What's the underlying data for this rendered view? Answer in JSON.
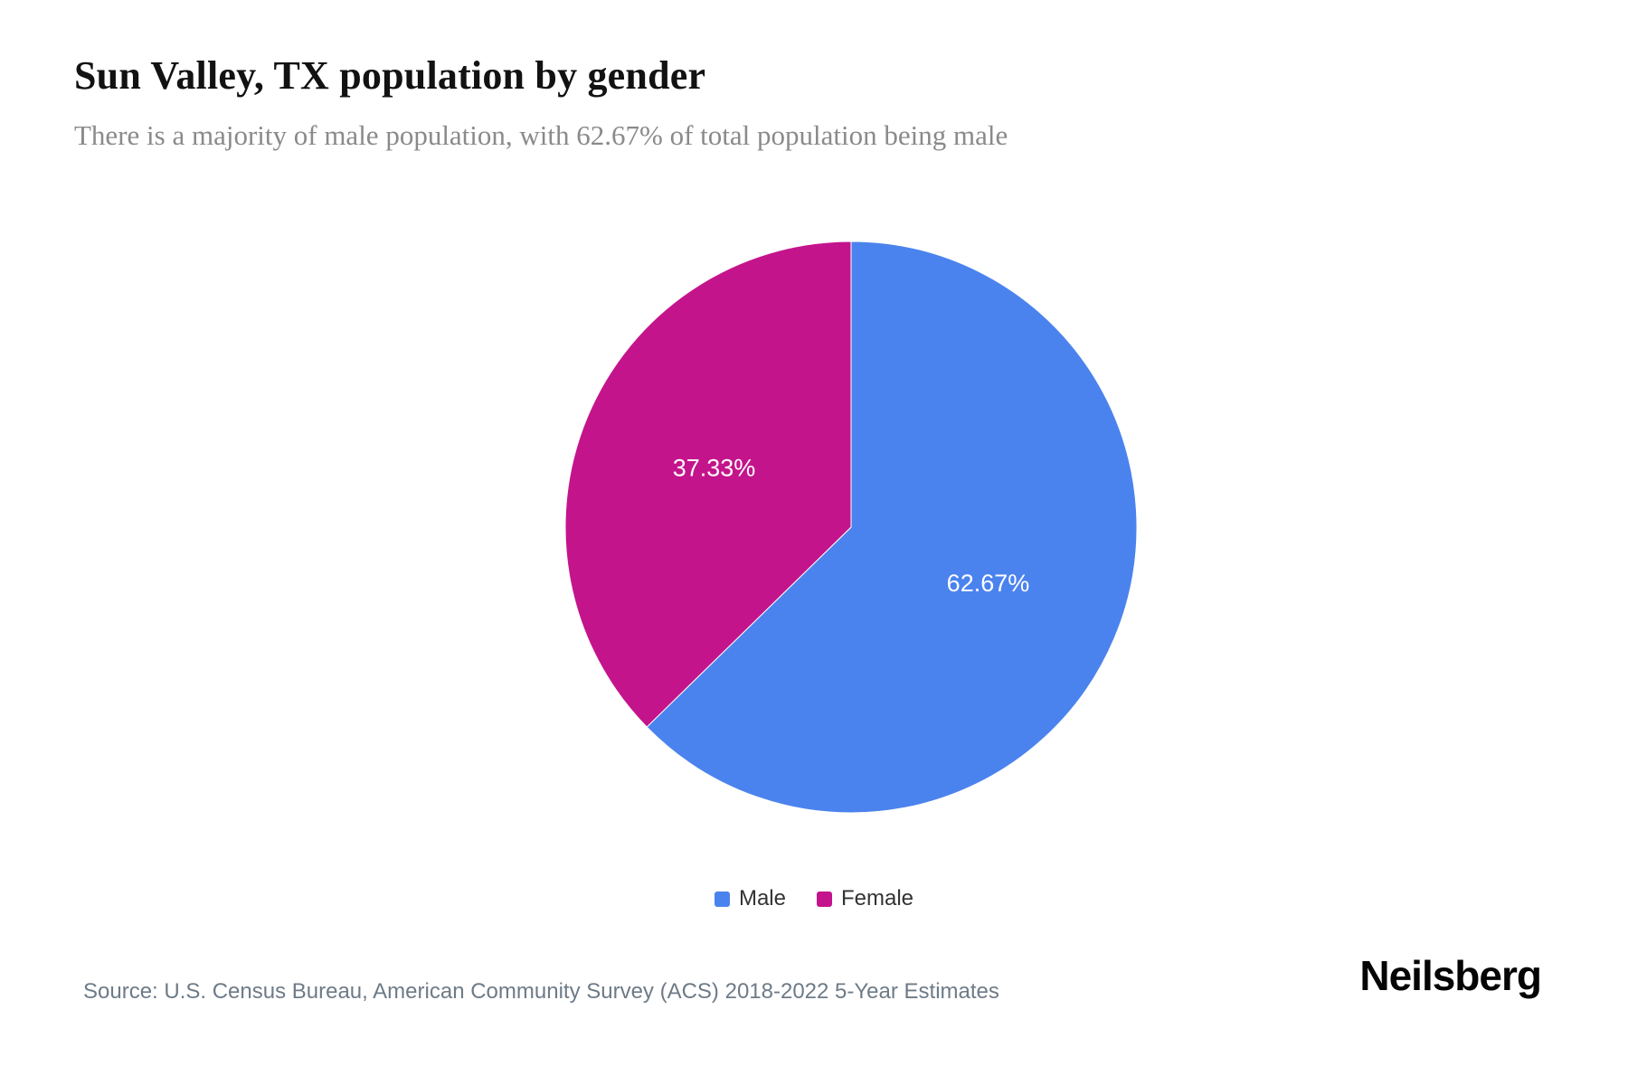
{
  "page": {
    "title": "Sun Valley, TX population by gender",
    "subtitle": "There is a majority of male population, with 62.67% of total population being male",
    "source": "Source: U.S. Census Bureau, American Community Survey (ACS) 2018-2022 5-Year Estimates",
    "brand": "Neilsberg"
  },
  "chart_data": {
    "type": "pie",
    "title": "Sun Valley, TX population by gender",
    "categories": [
      "Male",
      "Female"
    ],
    "values": [
      62.67,
      37.33
    ],
    "slices": [
      {
        "label": "Male",
        "value": 62.67,
        "display": "62.67%",
        "color": "#4B83EE"
      },
      {
        "label": "Female",
        "value": 37.33,
        "display": "37.33%",
        "color": "#C4148C"
      }
    ],
    "start_angle_deg": 0,
    "direction": "clockwise",
    "slice_label_color": "#ffffff",
    "slice_border_color": "#ffffff",
    "legend_position": "bottom"
  }
}
